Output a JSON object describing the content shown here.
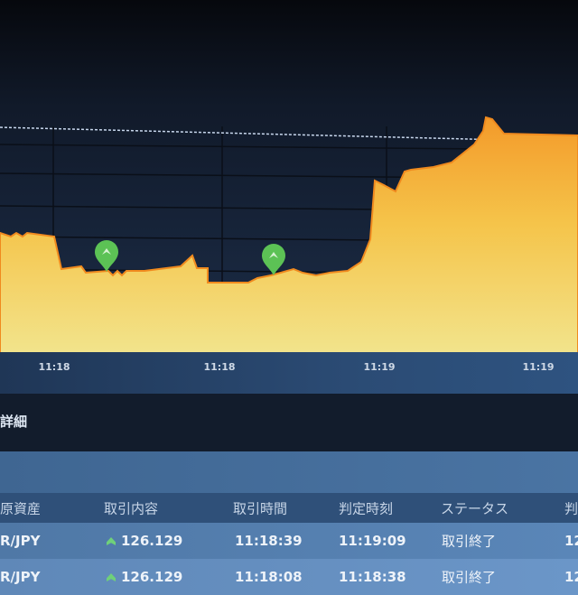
{
  "chart": {
    "x_axis_labels": [
      "11:18",
      "11:18",
      "11:19",
      "11:19"
    ],
    "fill_color_top": "#f39a2a",
    "fill_color_bottom": "#f2e48c",
    "marker_color": "#5cc255",
    "marker_icon": "up-arrow-pin-icon"
  },
  "section": {
    "title": "詳細"
  },
  "table": {
    "headers": [
      "原資産",
      "取引内容",
      "取引時間",
      "判定時刻",
      "ステータス",
      "判"
    ],
    "rows": [
      {
        "asset": "R/JPY",
        "direction": "up",
        "rate": "126.129",
        "trade_time": "11:18:39",
        "judge_time": "11:19:09",
        "status": "取引終了",
        "extra": "12"
      },
      {
        "asset": "R/JPY",
        "direction": "up",
        "rate": "126.129",
        "trade_time": "11:18:08",
        "judge_time": "11:18:38",
        "status": "取引終了",
        "extra": "12"
      }
    ]
  }
}
